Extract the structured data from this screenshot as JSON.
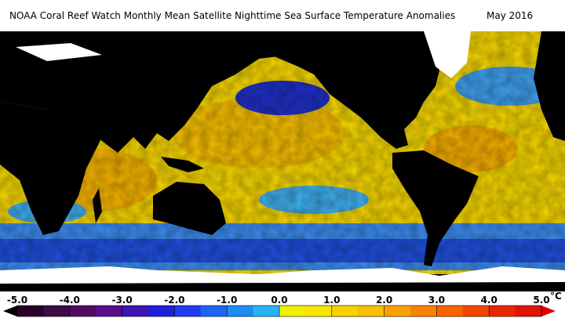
{
  "title": "NOAA Coral Reef Watch Monthly Mean Satellite Nighttime Sea Surface Temperature Anomalies",
  "date": "May 2016",
  "colorbar": {
    "range": [
      -5,
      5
    ],
    "ticks": [
      {
        "value": -5,
        "label": "-5.0"
      },
      {
        "value": -4,
        "label": "-4.0"
      },
      {
        "value": -3,
        "label": "-3.0"
      },
      {
        "value": -2,
        "label": "-2.0"
      },
      {
        "value": -1,
        "label": "-1.0"
      },
      {
        "value": 0,
        "label": "0.0"
      },
      {
        "value": 1,
        "label": "1.0"
      },
      {
        "value": 2,
        "label": "2.0"
      },
      {
        "value": 3,
        "label": "3.0"
      },
      {
        "value": 4,
        "label": "4.0"
      },
      {
        "value": 5,
        "label": "5.0"
      }
    ],
    "unit": "°C",
    "colors": [
      "#280028",
      "#3c0a46",
      "#500a64",
      "#5a0a8c",
      "#3c14b4",
      "#1e1edc",
      "#1e3cf0",
      "#1e64f0",
      "#1e8cf0",
      "#28b4f0",
      "#f0f000",
      "#f8e600",
      "#f8d200",
      "#f8be00",
      "#f8a000",
      "#f88200",
      "#f86400",
      "#f04600",
      "#e82800",
      "#e01400"
    ],
    "under_color": "#000000",
    "over_color": "#e00000"
  }
}
